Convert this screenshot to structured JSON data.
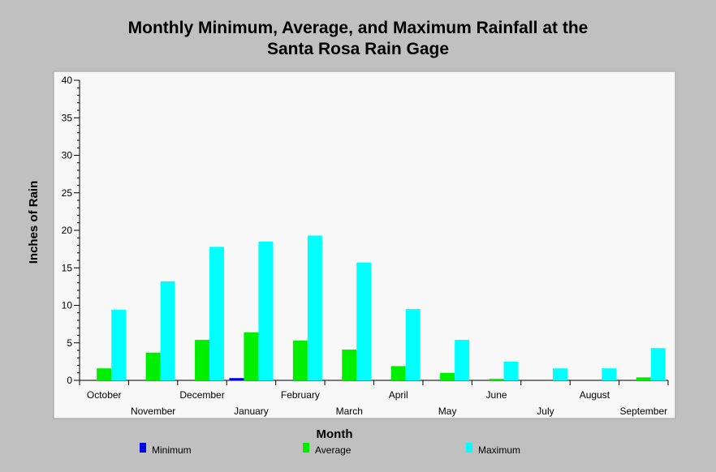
{
  "chart_data": {
    "type": "bar",
    "title_line1": "Monthly Minimum, Average, and Maximum Rainfall at the",
    "title_line2": "Santa Rosa Rain Gage",
    "xlabel": "Month",
    "ylabel": "Inches of Rain",
    "ylim": [
      0,
      40
    ],
    "yticks": [
      0,
      5,
      10,
      15,
      20,
      25,
      30,
      35,
      40
    ],
    "categories": [
      "October",
      "November",
      "December",
      "January",
      "February",
      "March",
      "April",
      "May",
      "June",
      "July",
      "August",
      "September"
    ],
    "series": [
      {
        "name": "Minimum",
        "color": "#0000e6",
        "values": [
          0,
          0,
          0,
          0.3,
          0,
          0,
          0,
          0,
          0,
          0,
          0,
          0
        ]
      },
      {
        "name": "Average",
        "color": "#00ee00",
        "values": [
          1.6,
          3.7,
          5.4,
          6.4,
          5.3,
          4.1,
          1.9,
          1.0,
          0.2,
          0,
          0,
          0.4
        ]
      },
      {
        "name": "Maximum",
        "color": "#00ffff",
        "values": [
          9.4,
          13.2,
          17.8,
          18.5,
          19.3,
          15.7,
          9.5,
          5.4,
          2.5,
          1.6,
          1.6,
          4.3
        ]
      }
    ],
    "legend_position": "bottom",
    "grid": false
  }
}
